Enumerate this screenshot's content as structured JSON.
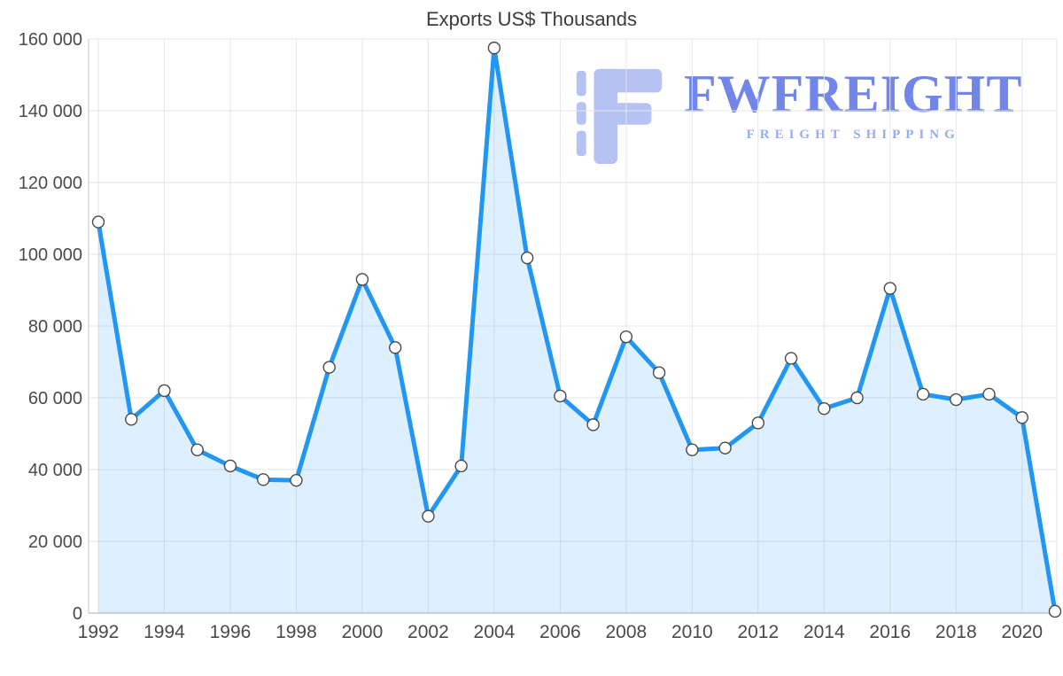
{
  "title": "Exports US$ Thousands",
  "logo": {
    "name": "FWFREIGHT",
    "tagline": "FREIGHT SHIPPING",
    "icon": "fwfreight-logo-icon",
    "wordmark_color": "#7286e9",
    "tagline_color": "#98abf0",
    "icon_color": "#b6c1f4"
  },
  "chart_data": {
    "type": "area",
    "title": "Exports US$ Thousands",
    "x": [
      1992,
      1993,
      1994,
      1995,
      1996,
      1997,
      1998,
      1999,
      2000,
      2001,
      2002,
      2003,
      2004,
      2005,
      2006,
      2007,
      2008,
      2009,
      2010,
      2011,
      2012,
      2013,
      2014,
      2015,
      2016,
      2017,
      2018,
      2019,
      2020,
      2021
    ],
    "values": [
      109000,
      54000,
      62000,
      45500,
      41000,
      37200,
      37000,
      68500,
      93000,
      74000,
      27000,
      41000,
      157500,
      99000,
      60500,
      52500,
      77000,
      67000,
      45500,
      46000,
      53000,
      71000,
      57000,
      60000,
      90500,
      61000,
      59500,
      61000,
      54500,
      500
    ],
    "xlabel": "",
    "ylabel": "",
    "ylim": [
      0,
      160000
    ],
    "y_ticks": [
      0,
      20000,
      40000,
      60000,
      80000,
      100000,
      120000,
      140000,
      160000
    ],
    "x_ticks": [
      1992,
      1994,
      1996,
      1998,
      2000,
      2002,
      2004,
      2006,
      2008,
      2010,
      2012,
      2014,
      2016,
      2018,
      2020
    ],
    "grid": true,
    "legend": "none",
    "line_color": "#2196f3",
    "fill_color": "rgba(33,150,243,0.15)",
    "grid_color": "#e6e6e6",
    "axis_color": "#c9c9c9",
    "tick_color": "#4a4a4a",
    "marker_fill": "#ffffff",
    "marker_stroke": "#4a4a4a"
  }
}
